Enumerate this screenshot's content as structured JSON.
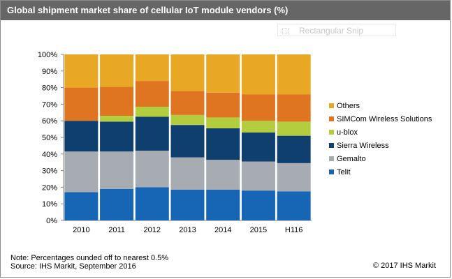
{
  "header": {
    "title": "Global shipment market share of cellular IoT module vendors (%)"
  },
  "overlay": {
    "snip_label": "Rectangular Snip"
  },
  "footer": {
    "note": "Note: Percentages ounded off to nearest 0.5%",
    "source": "Source: IHS Markit, September 2016",
    "copyright": "© 2017 IHS Markit"
  },
  "chart_data": {
    "type": "bar",
    "stacked": true,
    "categories": [
      "2010",
      "2011",
      "2012",
      "2013",
      "2014",
      "2015",
      "H116"
    ],
    "ylim": [
      0,
      100
    ],
    "yticks": [
      "0%",
      "10%",
      "20%",
      "30%",
      "40%",
      "50%",
      "60%",
      "70%",
      "80%",
      "90%",
      "100%"
    ],
    "grid": false,
    "legend_position": "right",
    "series": [
      {
        "name": "Telit",
        "color": "#1666b5",
        "values": [
          17,
          19,
          20,
          18.5,
          18.5,
          18,
          17.5
        ]
      },
      {
        "name": "Gemalto",
        "color": "#a6acb2",
        "values": [
          24.5,
          22.5,
          22,
          19.5,
          18,
          17.5,
          17
        ]
      },
      {
        "name": "Sierra Wireless",
        "color": "#0e3f6e",
        "values": [
          18.5,
          18,
          20.5,
          19.5,
          19,
          17.5,
          16.5
        ]
      },
      {
        "name": "u-blox",
        "color": "#b3cd3e",
        "values": [
          0,
          3.5,
          6,
          6,
          6.5,
          7,
          8.5
        ]
      },
      {
        "name": "SIMCom Wireless Solutions",
        "color": "#e07521",
        "values": [
          20,
          17.5,
          15.5,
          14.5,
          15,
          16,
          16.5
        ]
      },
      {
        "name": "Others",
        "color": "#e9a823",
        "values": [
          20,
          19.5,
          16,
          22,
          23,
          24,
          24
        ]
      }
    ]
  }
}
